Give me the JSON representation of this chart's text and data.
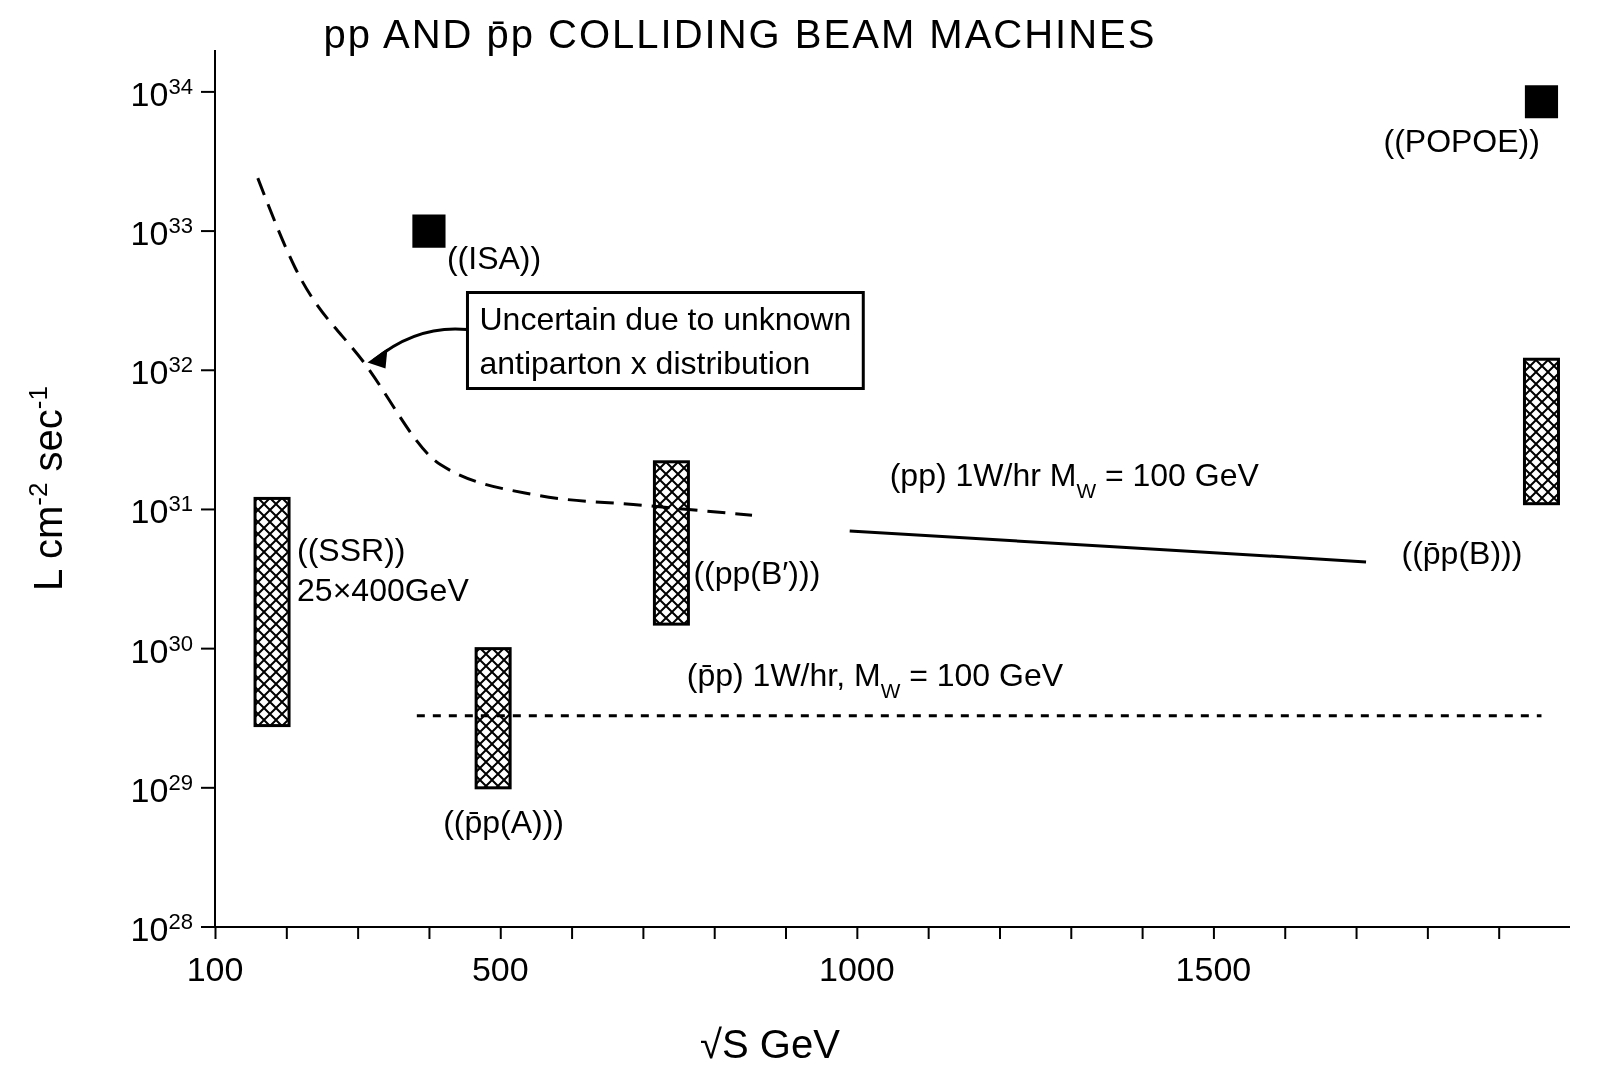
{
  "chart_data": {
    "type": "bar",
    "title": "pp AND p̄p COLLIDING BEAM MACHINES",
    "xlabel": "√S  GeV",
    "ylabel": "L cm$^{-2}$ sec$^{-1}$",
    "xlim": [
      100,
      2000
    ],
    "ylim": [
      1e+28,
      2e+34
    ],
    "log": "y",
    "grid": false,
    "xticks": [
      100,
      {
        "value": 200,
        "label": null
      },
      {
        "value": 300,
        "label": null
      },
      {
        "value": 400,
        "label": null
      },
      500,
      {
        "value": 600,
        "label": null
      },
      {
        "value": 700,
        "label": null
      },
      {
        "value": 800,
        "label": null
      },
      {
        "value": 900,
        "label": null
      },
      1000,
      {
        "value": 1100,
        "label": null
      },
      {
        "value": 1200,
        "label": null
      },
      {
        "value": 1300,
        "label": null
      },
      {
        "value": 1400,
        "label": null
      },
      1500,
      {
        "value": 1600,
        "label": null
      },
      {
        "value": 1700,
        "label": null
      },
      {
        "value": 1800,
        "label": null
      },
      {
        "value": 1900,
        "label": null
      }
    ],
    "yticks": [
      {
        "value": 1e+28,
        "label": "10$^{28}$"
      },
      {
        "value": 1e+29,
        "label": "10$^{29}$"
      },
      {
        "value": 1e+30,
        "label": "10$^{30}$"
      },
      {
        "value": 1e+31,
        "label": "10$^{31}$"
      },
      {
        "value": 1e+32,
        "label": "10$^{32}$"
      },
      {
        "value": 1e+33,
        "label": "10$^{33}$"
      },
      {
        "value": 1e+34,
        "label": "10$^{34}$"
      }
    ],
    "series": [
      {
        "color": "#000000",
        "x": [
          180,
          490,
          740,
          1960
        ],
        "base": [
          2.8e+29,
          1e+29,
          1.5e+30,
          1.1e+31
        ],
        "values": [
          1.172e+31,
          9e+29,
          2.05e+31,
          1.09e+32
        ]
      },
      {
        "type": "scatter",
        "marker": "square",
        "color": "#000000",
        "x": [
          400,
          1960
        ],
        "values": [
          1e+33,
          8.5e+33
        ]
      },
      {
        "type": "line",
        "line_style": "dashed",
        "color": "#000000",
        "x": [
          160,
          212,
          311,
          416,
          550,
          701,
          853
        ],
        "values": [
          2.4e+33,
          5.5e+32,
          1.1e+32,
          2.1e+31,
          1.27e+31,
          1.07e+31,
          9.1e+30
        ]
      },
      {
        "type": "line",
        "line_style": "solid",
        "color": "#000000",
        "x": [
          990,
          1360,
          1714
        ],
        "values": [
          7e+30,
          5.4e+30,
          4.2e+30
        ]
      },
      {
        "type": "line",
        "line_style": "dotted",
        "color": "#000000",
        "x": [
          383,
          1960
        ],
        "values": [
          3.3e+29,
          3.3e+29
        ]
      }
    ],
    "annotations": [
      "((ISA))",
      "((POPOE))",
      "((SSR))",
      "25×400GeV",
      "((p̄p(A)))",
      "((pp(B′)))",
      "((p̄p(B)))",
      "(pp) 1W/hr M$_{W}$ = 100 GeV",
      "(p̄p) 1W/hr, M$_{W}$ = 100 GeV",
      {
        "text": "Uncertain due to unknown antiparton x distribution",
        "x": 311,
        "y": 1.1e+32
      }
    ]
  }
}
